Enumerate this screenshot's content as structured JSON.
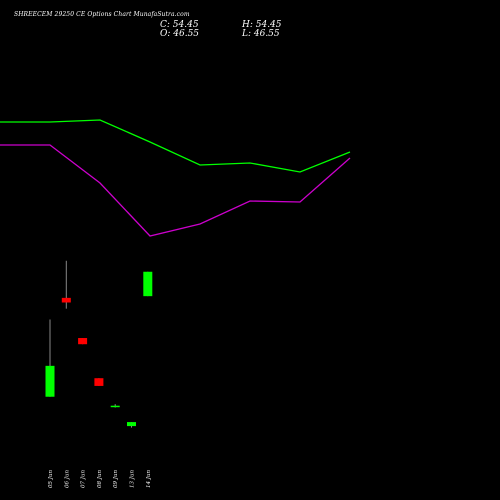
{
  "header": {
    "title": "SHREECEM 29250  CE Options  Chart MunafaSutra.com",
    "close": "C: 54.45",
    "open": "O: 46.55",
    "high": "H: 54.45",
    "low": "L: 46.55"
  },
  "colors": {
    "background": "#000000",
    "up": "#00ff00",
    "down": "#ff0000",
    "line_upper": "#00ff00",
    "line_lower": "#cc00cc",
    "wick": "#888888"
  },
  "chart_data": {
    "type": "candlestick",
    "categories": [
      "05 Jun",
      "06 Jun",
      "07 Jun",
      "08 Jun",
      "09 Jun",
      "13 Jun",
      "14 Jun"
    ],
    "candles": [
      {
        "date": "05 Jun",
        "direction": "up",
        "open": 14.0,
        "close": 24.0,
        "high": 39.0,
        "low": 14.0
      },
      {
        "date": "06 Jun",
        "direction": "down",
        "open": 46.0,
        "close": 44.5,
        "high": 58.0,
        "low": 42.5
      },
      {
        "date": "07 Jun",
        "direction": "down",
        "open": 33.0,
        "close": 31.0,
        "high": 33.0,
        "low": 31.0
      },
      {
        "date": "08 Jun",
        "direction": "down",
        "open": 20.0,
        "close": 17.5,
        "high": 20.0,
        "low": 17.5
      },
      {
        "date": "09 Jun",
        "direction": "up",
        "open": 10.9,
        "close": 11.1,
        "high": 11.6,
        "low": 10.5
      },
      {
        "date": "13 Jun",
        "direction": "up",
        "open": 4.5,
        "close": 5.8,
        "high": 5.8,
        "low": 4.0
      },
      {
        "date": "14 Jun",
        "direction": "up",
        "open": 46.55,
        "close": 54.45,
        "high": 54.45,
        "low": 46.55
      }
    ],
    "lines": [
      {
        "color": "green",
        "points": [
          [
            0,
            122
          ],
          [
            50,
            122
          ],
          [
            100,
            120
          ],
          [
            150,
            142
          ],
          [
            200,
            165
          ],
          [
            250,
            163
          ],
          [
            300,
            172
          ],
          [
            350,
            152
          ]
        ]
      },
      {
        "color": "magenta",
        "points": [
          [
            0,
            145
          ],
          [
            50,
            145
          ],
          [
            100,
            183
          ],
          [
            150,
            236
          ],
          [
            200,
            224
          ],
          [
            250,
            201
          ],
          [
            300,
            202
          ],
          [
            350,
            158
          ]
        ]
      }
    ]
  }
}
